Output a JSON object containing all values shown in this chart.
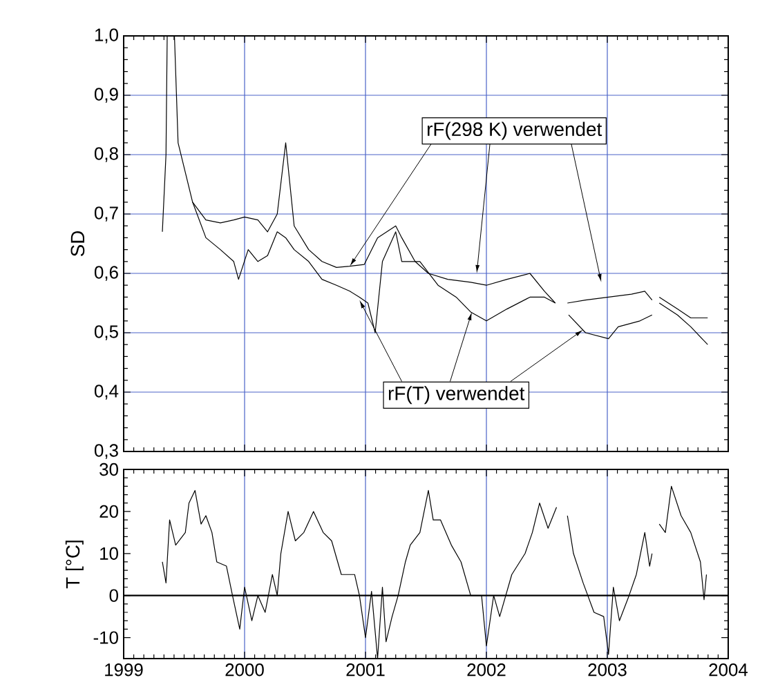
{
  "chart_data": [
    {
      "type": "line",
      "ylabel": "SD",
      "xlim": [
        1999,
        2004
      ],
      "ylim": [
        0.3,
        1.0
      ],
      "xticks": [
        1999,
        2000,
        2001,
        2002,
        2003,
        2004
      ],
      "yticks": [
        {
          "value": 0.3,
          "label": "0,3"
        },
        {
          "value": 0.4,
          "label": "0,4"
        },
        {
          "value": 0.5,
          "label": "0,5"
        },
        {
          "value": 0.6,
          "label": "0,6"
        },
        {
          "value": 0.7,
          "label": "0,7"
        },
        {
          "value": 0.8,
          "label": "0,8"
        },
        {
          "value": 0.9,
          "label": "0,9"
        },
        {
          "value": 1.0,
          "label": "1,0"
        }
      ],
      "grid": true,
      "tick_labels": "y",
      "annotations": [
        {
          "text": "rF(298 K) verwendet",
          "x": 2000.87,
          "y": 0.612
        },
        {
          "text": "rF(T) verwendet",
          "x": 2000.95,
          "y": 0.555
        }
      ],
      "series": [
        {
          "color": "#000000",
          "x": [
            1999.32,
            1999.35,
            1999.36,
            1999.38,
            1999.42,
            1999.45,
            1999.57,
            1999.68,
            1999.8,
            1999.91,
            2000.0,
            2000.11,
            2000.19,
            2000.27,
            2000.34,
            2000.41,
            2000.53,
            2000.64,
            2000.76,
            2000.87,
            2000.99,
            2001.1,
            2001.25,
            2001.3,
            2001.41,
            2001.52,
            2001.68,
            2001.87,
            2002.0,
            2002.17,
            2002.36,
            2002.48,
            2002.57,
            2002.62,
            2002.67,
            2002.82,
            2003.01,
            2003.2,
            2003.31,
            2003.37,
            2003.4,
            2003.43,
            2003.58,
            2003.69,
            2003.83
          ],
          "values": [
            0.67,
            0.8,
            1.0,
            null,
            1.0,
            0.82,
            0.72,
            0.69,
            0.685,
            0.69,
            0.695,
            0.69,
            0.67,
            0.7,
            0.82,
            0.68,
            0.64,
            0.62,
            0.61,
            0.612,
            0.615,
            0.66,
            0.68,
            0.66,
            0.62,
            0.6,
            0.59,
            0.585,
            0.58,
            0.59,
            0.6,
            0.57,
            0.55,
            null,
            0.55,
            0.555,
            0.56,
            0.565,
            0.57,
            0.555,
            null,
            0.56,
            0.54,
            0.525,
            0.525
          ]
        },
        {
          "color": "#000000",
          "x": [
            1999.57,
            1999.68,
            1999.8,
            1999.91,
            1999.95,
            2000.03,
            2000.11,
            2000.19,
            2000.27,
            2000.34,
            2000.41,
            2000.53,
            2000.64,
            2000.76,
            2000.87,
            2000.95,
            2001.02,
            2001.08,
            2001.14,
            2001.25,
            2001.3,
            2001.45,
            2001.6,
            2001.75,
            2001.87,
            2002.0,
            2002.17,
            2002.36,
            2002.48,
            2002.57,
            2002.62,
            2002.68,
            2002.82,
            2003.01,
            2003.09,
            2003.27,
            2003.37,
            2003.4,
            2003.43,
            2003.58,
            2003.69,
            2003.83
          ],
          "values": [
            0.72,
            0.66,
            0.64,
            0.62,
            0.59,
            0.64,
            0.62,
            0.63,
            0.67,
            0.66,
            0.64,
            0.62,
            0.59,
            0.58,
            0.57,
            0.56,
            0.55,
            0.5,
            0.62,
            0.67,
            0.62,
            0.62,
            0.58,
            0.56,
            0.535,
            0.52,
            0.54,
            0.56,
            0.56,
            0.55,
            null,
            0.53,
            0.5,
            0.49,
            0.51,
            0.52,
            0.53,
            null,
            0.55,
            0.53,
            0.51,
            0.48
          ]
        }
      ]
    },
    {
      "type": "line",
      "ylabel": "T [°C]",
      "xlim": [
        1999,
        2004
      ],
      "ylim": [
        -15,
        30
      ],
      "xticks": [
        1999,
        2000,
        2001,
        2002,
        2003,
        2004
      ],
      "yticks": [
        -10,
        0,
        10,
        20,
        30
      ],
      "grid": "x",
      "ref_lines": [
        {
          "axis": "y",
          "value": 0,
          "color": "#000000"
        }
      ],
      "series": [
        {
          "color": "#000000",
          "x": [
            1999.32,
            1999.35,
            1999.38,
            1999.43,
            1999.51,
            1999.54,
            1999.59,
            1999.64,
            1999.68,
            1999.73,
            1999.77,
            1999.85,
            1999.9,
            1999.96,
            2000.0,
            2000.06,
            2000.11,
            2000.17,
            2000.23,
            2000.27,
            2000.3,
            2000.36,
            2000.42,
            2000.49,
            2000.57,
            2000.65,
            2000.72,
            2000.8,
            2000.91,
            2000.95,
            2001.0,
            2001.05,
            2001.1,
            2001.14,
            2001.17,
            2001.22,
            2001.27,
            2001.33,
            2001.37,
            2001.45,
            2001.52,
            2001.56,
            2001.62,
            2001.71,
            2001.79,
            2001.87,
            2001.96,
            2002.0,
            2002.06,
            2002.11,
            2002.21,
            2002.32,
            2002.38,
            2002.44,
            2002.51,
            2002.58,
            2002.62,
            2002.67,
            2002.72,
            2002.8,
            2002.89,
            2002.97,
            2003.01,
            2003.05,
            2003.1,
            2003.18,
            2003.24,
            2003.31,
            2003.35,
            2003.37,
            2003.4,
            2003.43,
            2003.48,
            2003.53,
            2003.61,
            2003.69,
            2003.77,
            2003.8,
            2003.82
          ],
          "values": [
            8,
            3,
            18,
            12,
            15,
            22,
            25,
            17,
            19,
            15,
            8,
            7,
            0,
            -8,
            2,
            -6,
            0,
            -4,
            5,
            0,
            10,
            20,
            13,
            15,
            20,
            15,
            13,
            5,
            5,
            0,
            -10,
            1,
            -15,
            2,
            -11,
            -5,
            0,
            8,
            12,
            15,
            25,
            18,
            18,
            12,
            8,
            0,
            0,
            -12,
            0,
            -5,
            5,
            10,
            15,
            22,
            16,
            21,
            null,
            19,
            10,
            3,
            -4,
            -5,
            -14,
            2,
            -6,
            0,
            5,
            15,
            7,
            10,
            null,
            17,
            15,
            26,
            19,
            15,
            8,
            -1,
            5
          ]
        }
      ]
    }
  ]
}
